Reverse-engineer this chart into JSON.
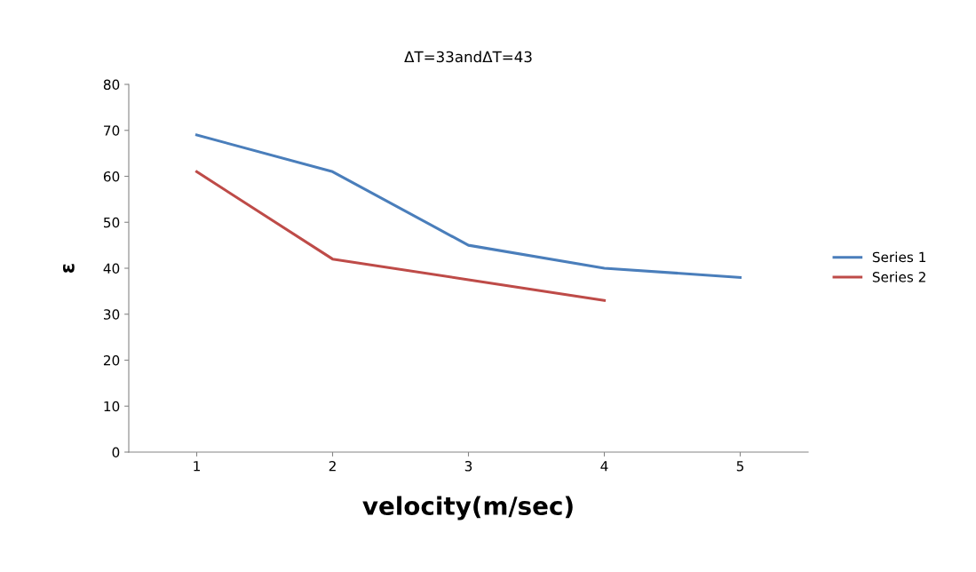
{
  "chart_data": {
    "type": "line",
    "title": "ΔT=33andΔT=43",
    "xlabel": "velocity(m/sec)",
    "ylabel": "ε",
    "categories": [
      "1",
      "2",
      "3",
      "4",
      "5"
    ],
    "series": [
      {
        "name": "Series 1",
        "color": "#4a7ebb",
        "values": [
          69,
          61,
          45,
          40,
          38
        ]
      },
      {
        "name": "Series 2",
        "color": "#be4b48",
        "values": [
          61,
          42,
          37.5,
          33,
          null
        ]
      }
    ],
    "ylim": [
      0,
      80
    ],
    "yticks": [
      0,
      10,
      20,
      30,
      40,
      50,
      60,
      70,
      80
    ],
    "grid": false,
    "legend": "right",
    "marker": "none",
    "line_style": "solid"
  }
}
